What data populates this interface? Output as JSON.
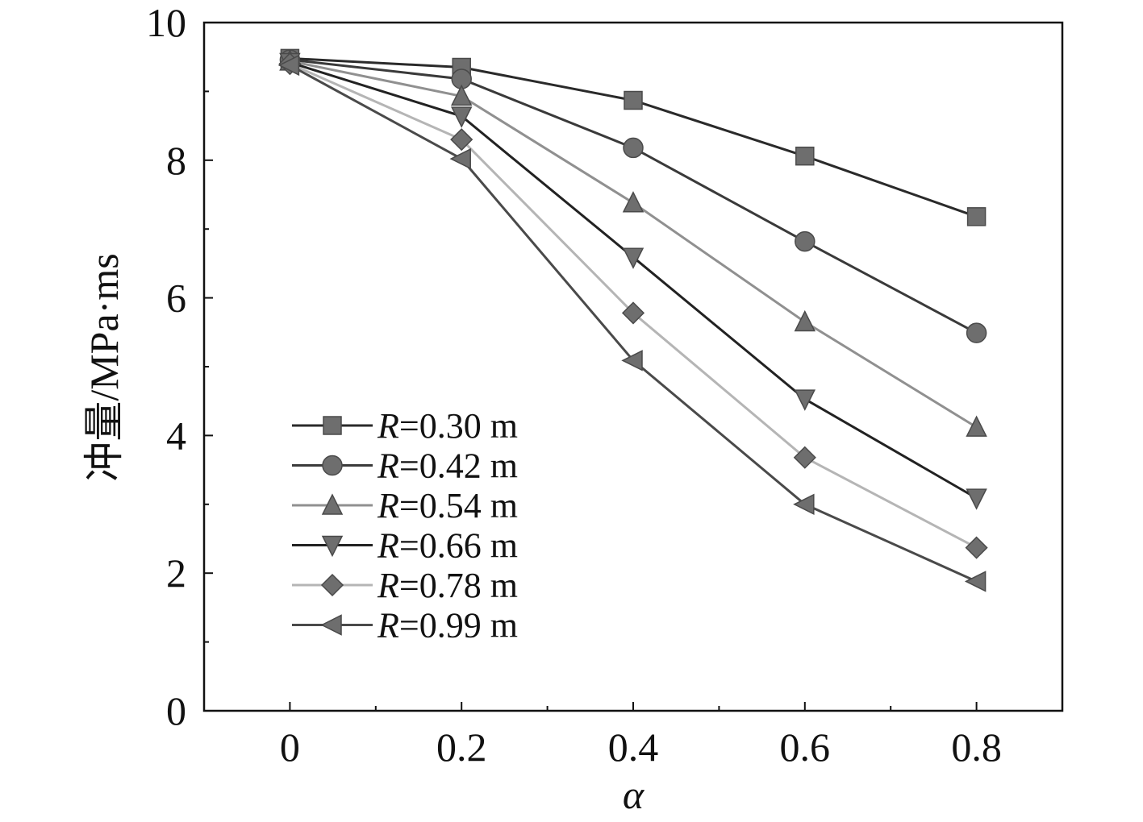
{
  "chart_data": {
    "type": "line",
    "title": "",
    "xlabel": "α",
    "ylabel": "冲量/MPa·ms",
    "x": [
      0,
      0.2,
      0.4,
      0.6,
      0.8
    ],
    "x_tick_labels": [
      "0",
      "0.2",
      "0.4",
      "0.6",
      "0.8"
    ],
    "y_tick_labels": [
      "0",
      "2",
      "4",
      "6",
      "8",
      "10"
    ],
    "xlim": [
      -0.1,
      0.9
    ],
    "ylim": [
      0,
      10
    ],
    "grid": false,
    "legend_position": "left-middle",
    "series": [
      {
        "name": "R=0.30 m",
        "label_var": "R",
        "label_rest": "=0.30 m",
        "marker": "square",
        "color": "#2a2a2a",
        "values": [
          9.48,
          9.35,
          8.87,
          8.06,
          7.18
        ]
      },
      {
        "name": "R=0.42 m",
        "label_var": "R",
        "label_rest": "=0.42 m",
        "marker": "circle",
        "color": "#3a3a3a",
        "values": [
          9.46,
          9.18,
          8.18,
          6.82,
          5.49
        ]
      },
      {
        "name": "R=0.54 m",
        "label_var": "R",
        "label_rest": "=0.54 m",
        "marker": "triangle-up",
        "color": "#909090",
        "values": [
          9.44,
          8.93,
          7.38,
          5.65,
          4.12
        ]
      },
      {
        "name": "R=0.66 m",
        "label_var": "R",
        "label_rest": "=0.66 m",
        "marker": "triangle-down",
        "color": "#222222",
        "values": [
          9.42,
          8.64,
          6.59,
          4.53,
          3.09
        ]
      },
      {
        "name": "R=0.78 m",
        "label_var": "R",
        "label_rest": "=0.78 m",
        "marker": "diamond",
        "color": "#b5b5b5",
        "values": [
          9.4,
          8.3,
          5.78,
          3.68,
          2.37
        ]
      },
      {
        "name": "R=0.99 m",
        "label_var": "R",
        "label_rest": "=0.99 m",
        "marker": "triangle-left",
        "color": "#4a4a4a",
        "values": [
          9.38,
          8.02,
          5.09,
          3.0,
          1.88
        ]
      }
    ]
  },
  "marker_fill": "#6e6e6e"
}
